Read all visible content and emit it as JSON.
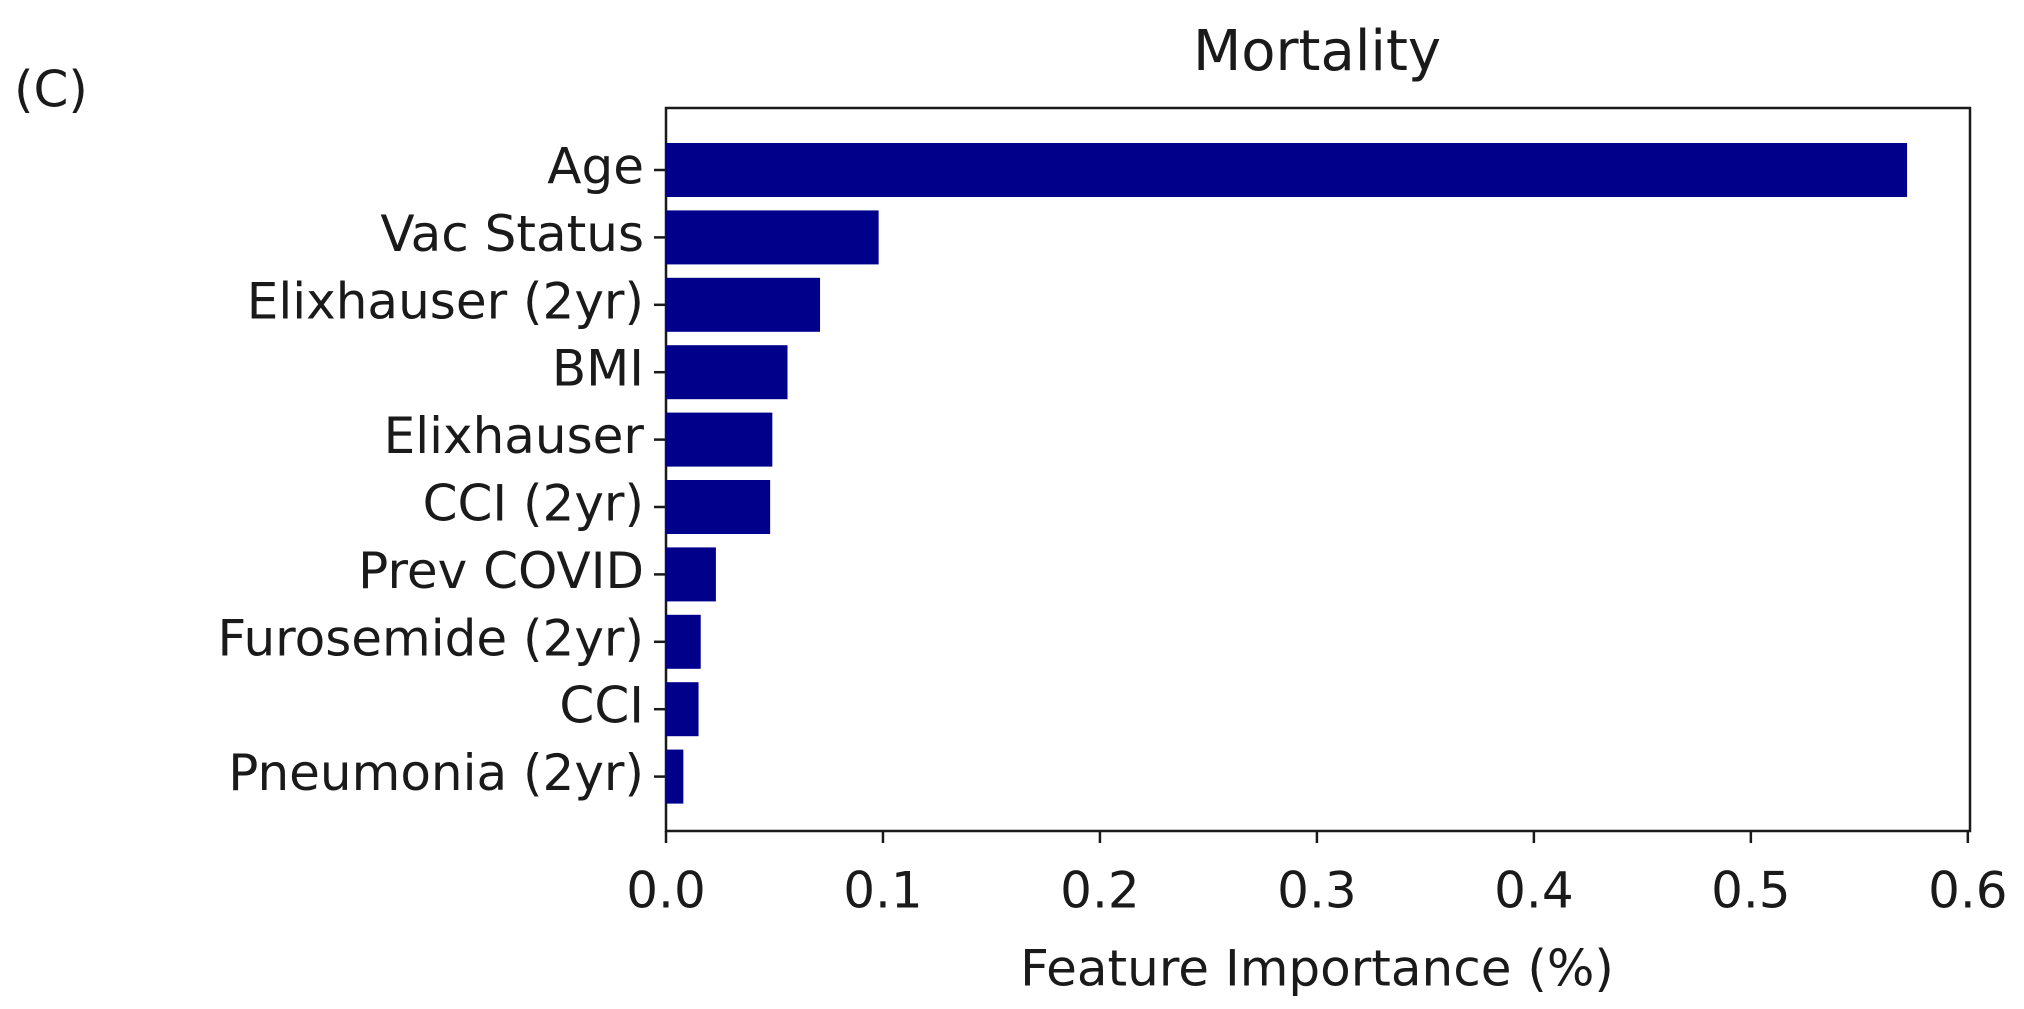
{
  "chart_data": {
    "type": "barh",
    "panel_label": "(C)",
    "title": "Mortality",
    "x_label": "Feature Importance (%)",
    "categories": [
      "Age",
      "Vac Status",
      "Elixhauser (2yr)",
      "BMI",
      "Elixhauser",
      "CCI (2yr)",
      "Prev COVID",
      "Furosemide (2yr)",
      "CCI",
      "Pneumonia (2yr)"
    ],
    "values": [
      0.572,
      0.098,
      0.071,
      0.056,
      0.049,
      0.048,
      0.023,
      0.016,
      0.015,
      0.008
    ],
    "color": "#00008b",
    "xlim": [
      0,
      0.601
    ],
    "xticks": [
      {
        "value": 0,
        "label": "0.0"
      },
      0.1,
      0.2,
      0.3,
      0.4,
      0.5,
      0.6
    ]
  }
}
